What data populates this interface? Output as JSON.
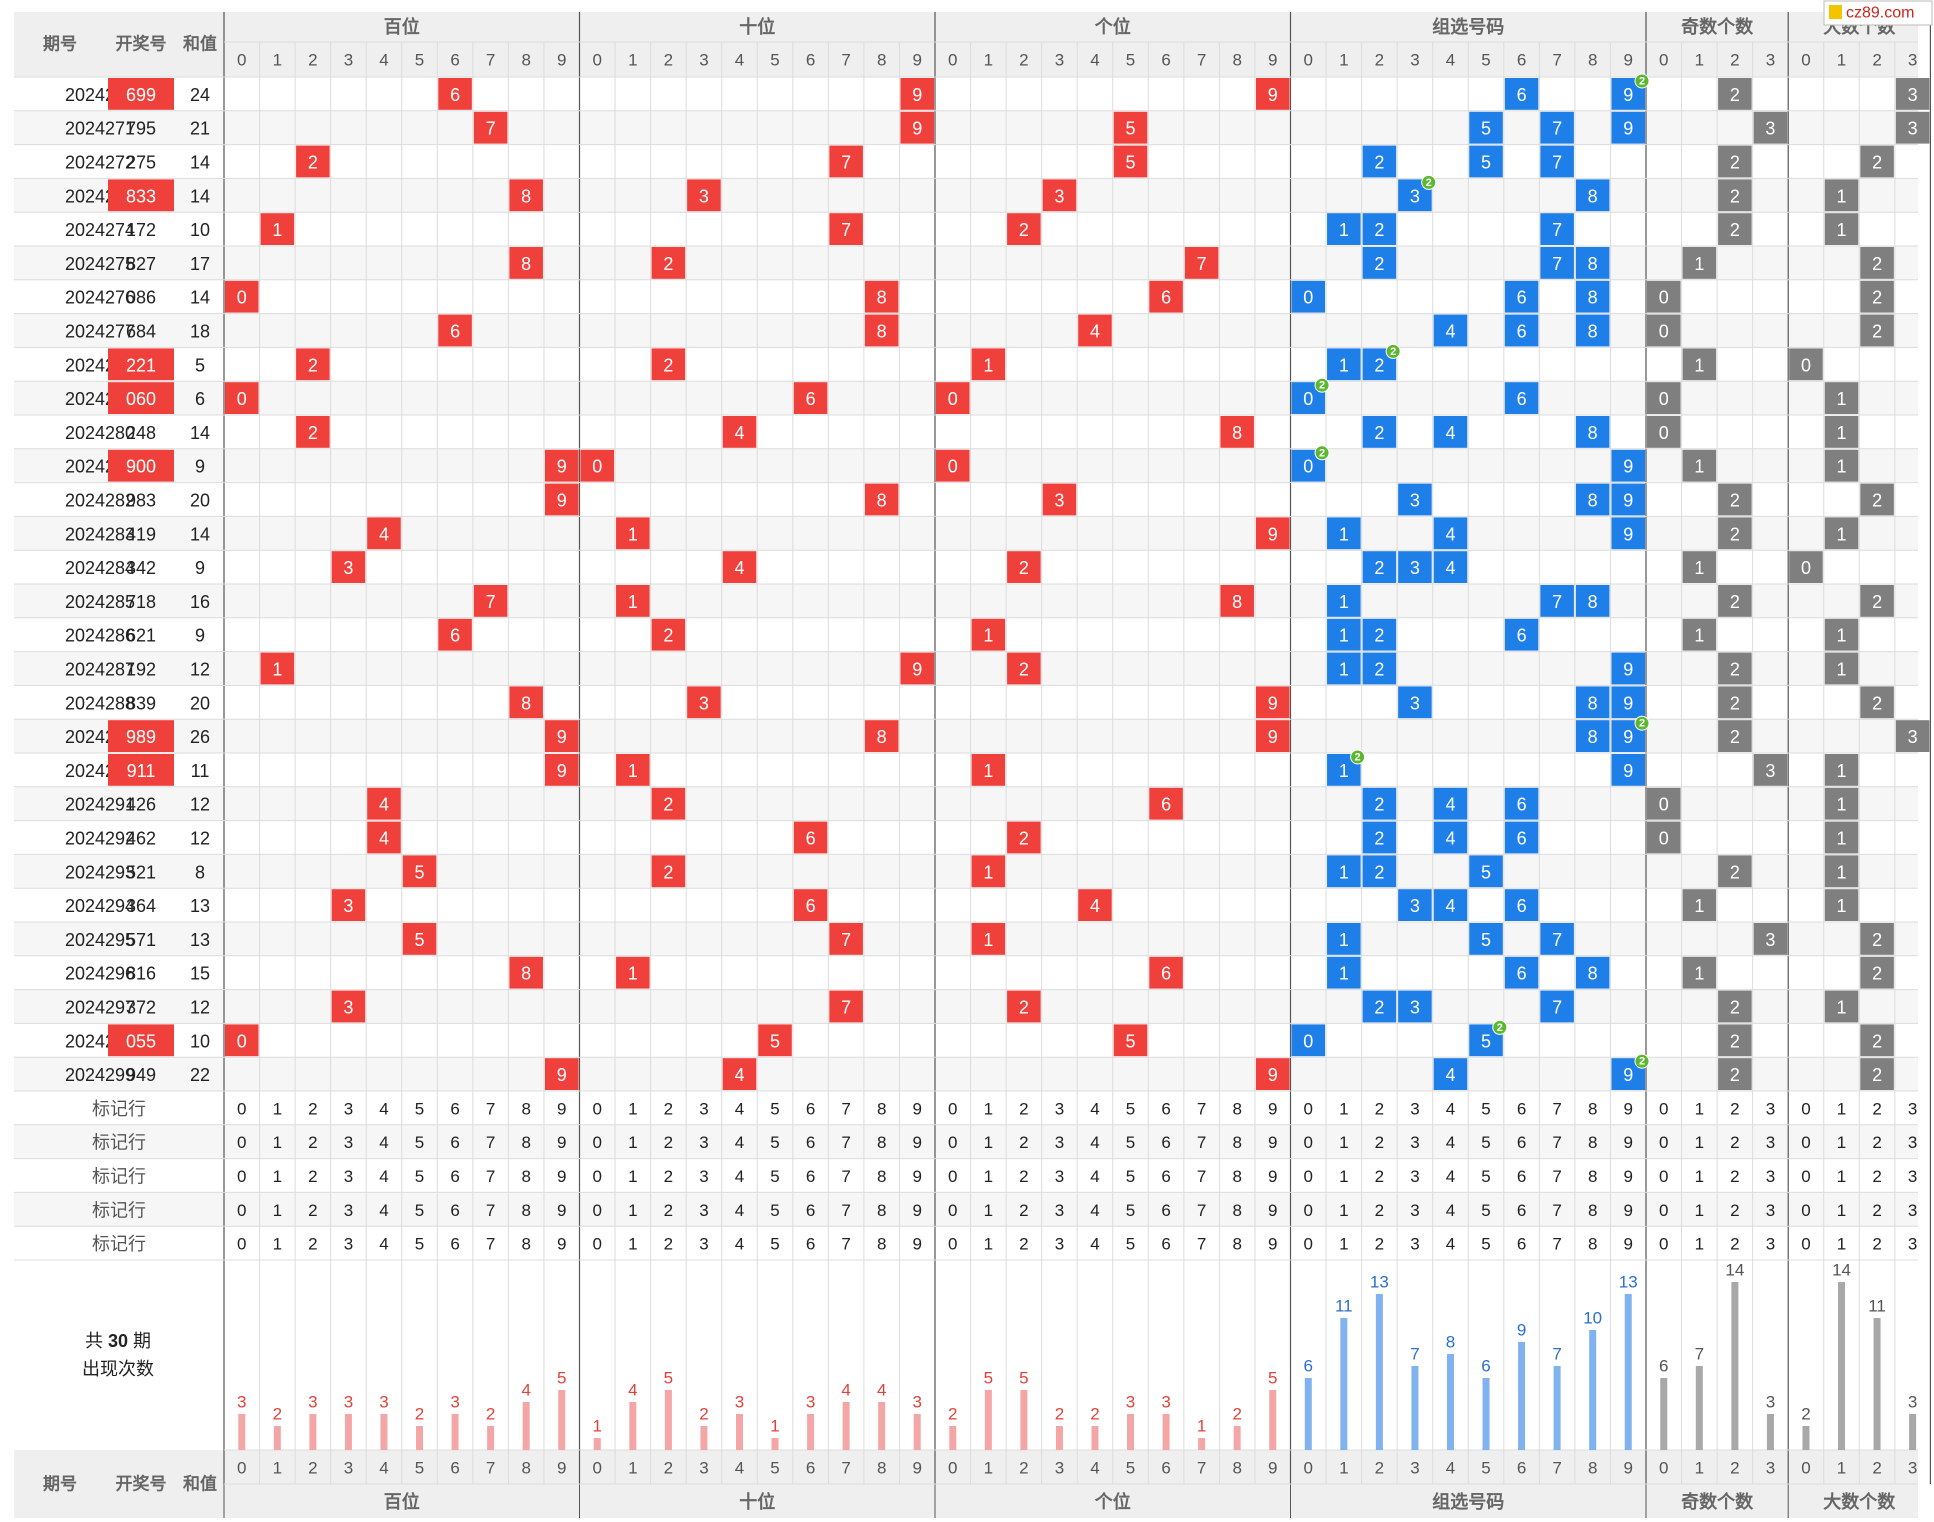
{
  "site_badge": "cz89.com",
  "header": {
    "col_issue": "期号",
    "col_number": "开奖号",
    "col_sum": "和值",
    "groups": [
      "百位",
      "十位",
      "个位",
      "组选号码",
      "奇数个数",
      "大数个数"
    ]
  },
  "colors": {
    "position_ball": "#f0403c",
    "group_ball": "#1f7fe8",
    "count_ball": "#7f7f7f",
    "repeat_badge": "#5ab82e",
    "highlight_number": "#f0403c",
    "pos_bar": "#f4a6a6",
    "pos_bar_label": "#e0433c",
    "group_bar": "#7fb2ee",
    "group_bar_label": "#2b6fcf",
    "count_bar": "#a8a8a8",
    "count_bar_label": "#555555"
  },
  "marker_row_label": "标记行",
  "marker_row_count": 5,
  "footer": {
    "summary_prefix": "共",
    "summary_count": "30",
    "summary_suffix": "期",
    "summary_line2": "出现次数"
  },
  "chart_data": {
    "type": "table",
    "title": "",
    "rows": [
      {
        "issue": "2024270",
        "number": "699",
        "sum": 24,
        "highlight": true
      },
      {
        "issue": "2024271",
        "number": "795",
        "sum": 21,
        "highlight": false
      },
      {
        "issue": "2024272",
        "number": "275",
        "sum": 14,
        "highlight": false
      },
      {
        "issue": "2024273",
        "number": "833",
        "sum": 14,
        "highlight": true
      },
      {
        "issue": "2024274",
        "number": "172",
        "sum": 10,
        "highlight": false
      },
      {
        "issue": "2024275",
        "number": "827",
        "sum": 17,
        "highlight": false
      },
      {
        "issue": "2024276",
        "number": "086",
        "sum": 14,
        "highlight": false
      },
      {
        "issue": "2024277",
        "number": "684",
        "sum": 18,
        "highlight": false
      },
      {
        "issue": "2024278",
        "number": "221",
        "sum": 5,
        "highlight": true
      },
      {
        "issue": "2024279",
        "number": "060",
        "sum": 6,
        "highlight": true
      },
      {
        "issue": "2024280",
        "number": "248",
        "sum": 14,
        "highlight": false
      },
      {
        "issue": "2024281",
        "number": "900",
        "sum": 9,
        "highlight": true
      },
      {
        "issue": "2024282",
        "number": "983",
        "sum": 20,
        "highlight": false
      },
      {
        "issue": "2024283",
        "number": "419",
        "sum": 14,
        "highlight": false
      },
      {
        "issue": "2024284",
        "number": "342",
        "sum": 9,
        "highlight": false
      },
      {
        "issue": "2024285",
        "number": "718",
        "sum": 16,
        "highlight": false
      },
      {
        "issue": "2024286",
        "number": "621",
        "sum": 9,
        "highlight": false
      },
      {
        "issue": "2024287",
        "number": "192",
        "sum": 12,
        "highlight": false
      },
      {
        "issue": "2024288",
        "number": "839",
        "sum": 20,
        "highlight": false
      },
      {
        "issue": "2024289",
        "number": "989",
        "sum": 26,
        "highlight": true
      },
      {
        "issue": "2024290",
        "number": "911",
        "sum": 11,
        "highlight": true
      },
      {
        "issue": "2024291",
        "number": "426",
        "sum": 12,
        "highlight": false
      },
      {
        "issue": "2024292",
        "number": "462",
        "sum": 12,
        "highlight": false
      },
      {
        "issue": "2024293",
        "number": "521",
        "sum": 8,
        "highlight": false
      },
      {
        "issue": "2024294",
        "number": "364",
        "sum": 13,
        "highlight": false
      },
      {
        "issue": "2024295",
        "number": "571",
        "sum": 13,
        "highlight": false
      },
      {
        "issue": "2024296",
        "number": "816",
        "sum": 15,
        "highlight": false
      },
      {
        "issue": "2024297",
        "number": "372",
        "sum": 12,
        "highlight": false
      },
      {
        "issue": "2024298",
        "number": "055",
        "sum": 10,
        "highlight": true
      },
      {
        "issue": "2024299",
        "number": "949",
        "sum": 22,
        "highlight": false
      }
    ],
    "odd_count_columns": [
      "0",
      "1",
      "2",
      "3"
    ],
    "big_count_columns": [
      "0",
      "1",
      "2",
      "3"
    ],
    "occurrences": {
      "hundreds": [
        3,
        2,
        3,
        3,
        3,
        2,
        3,
        2,
        4,
        5
      ],
      "tens": [
        1,
        4,
        5,
        2,
        3,
        1,
        3,
        4,
        4,
        3
      ],
      "units": [
        2,
        5,
        5,
        2,
        2,
        3,
        3,
        1,
        2,
        5
      ],
      "group": [
        6,
        11,
        13,
        7,
        8,
        6,
        9,
        7,
        10,
        13
      ],
      "odd_count": [
        6,
        7,
        14,
        3
      ],
      "big_count": [
        2,
        14,
        11,
        3
      ]
    }
  }
}
